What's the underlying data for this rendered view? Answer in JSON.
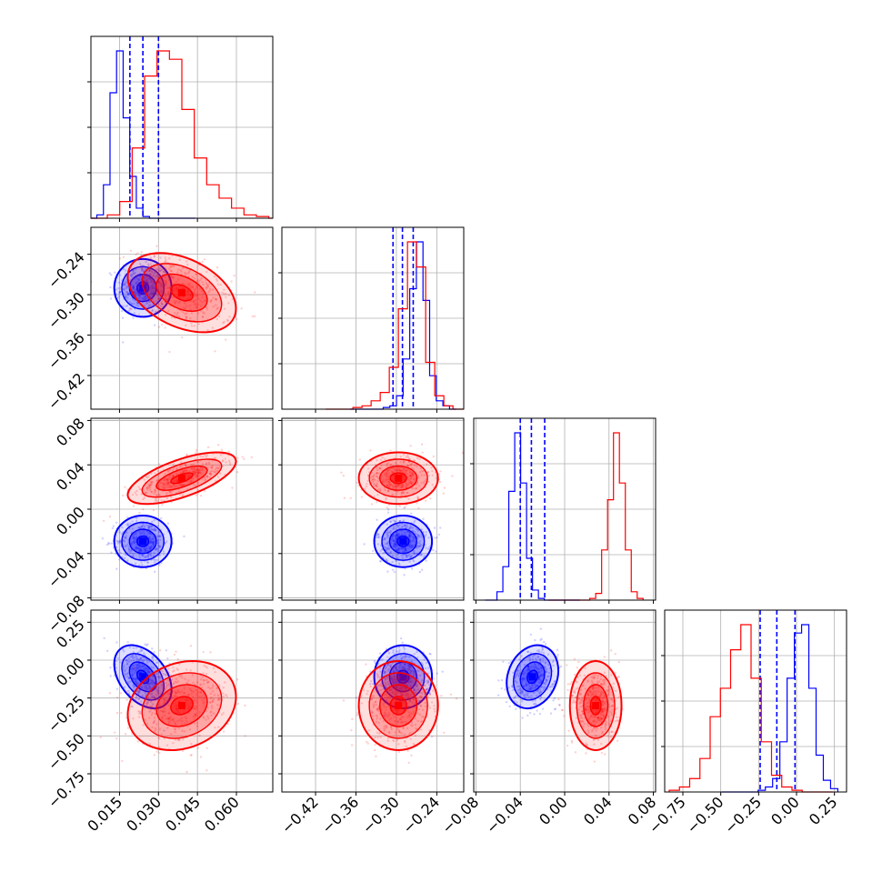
{
  "chart_data": {
    "type": "corner",
    "grid": true,
    "colors": {
      "blue": "#0000ff",
      "red": "#ff0000"
    },
    "params": [
      {
        "range": [
          0.004,
          0.074
        ],
        "ticks": [
          "0.015",
          "0.030",
          "0.045",
          "0.060"
        ],
        "tick_values": [
          0.015,
          0.03,
          0.045,
          0.06
        ]
      },
      {
        "range": [
          -0.47,
          -0.2
        ],
        "ticks": [
          "−0.42",
          "−0.36",
          "−0.30",
          "−0.24"
        ],
        "tick_values": [
          -0.42,
          -0.36,
          -0.3,
          -0.24
        ]
      },
      {
        "range": [
          -0.082,
          0.082
        ],
        "ticks": [
          "−0.08",
          "−0.04",
          "0.00",
          "0.04",
          "0.08"
        ],
        "tick_values": [
          -0.08,
          -0.04,
          0.0,
          0.04,
          0.08
        ]
      },
      {
        "range": [
          -0.87,
          0.33
        ],
        "ticks": [
          "−0.75",
          "−0.50",
          "−0.25",
          "0.00",
          "0.25"
        ],
        "tick_values": [
          -0.75,
          -0.5,
          -0.25,
          0.0,
          0.25
        ]
      }
    ],
    "series": [
      {
        "color": "blue",
        "means": [
          0.024,
          -0.29,
          -0.029,
          -0.11
        ],
        "sds": [
          0.0045,
          0.0175,
          0.0095,
          0.085
        ],
        "quantiles": [
          [
            0.019,
            0.024,
            0.03
          ],
          [
            -0.305,
            -0.291,
            -0.275
          ],
          [
            -0.04,
            -0.03,
            -0.018
          ],
          [
            -0.24,
            -0.13,
            -0.01
          ]
        ],
        "hist": [
          [
            0,
            0.02,
            0.2,
            0.75,
            1.0,
            0.6,
            0.25,
            0.06,
            0.01,
            0,
            0,
            0,
            0,
            0,
            0,
            0
          ],
          [
            0,
            0,
            0,
            0,
            0,
            0.01,
            0.02,
            0.08,
            0.3,
            0.72,
            1.0,
            0.65,
            0.2,
            0.05,
            0.02,
            0
          ],
          [
            0,
            0,
            0.05,
            0.2,
            0.65,
            1.0,
            0.7,
            0.25,
            0.06,
            0.01,
            0,
            0,
            0,
            0,
            0,
            0
          ],
          [
            0,
            0,
            0,
            0,
            0,
            0.01,
            0.03,
            0.08,
            0.3,
            0.68,
            0.95,
            1.0,
            0.62,
            0.22,
            0.07,
            0.02
          ]
        ],
        "corr": {
          "0-1": 0.0,
          "0-2": 0.0,
          "0-3": -0.4,
          "1-2": 0.0,
          "1-3": 0.0,
          "2-3": 0.2
        }
      },
      {
        "color": "red",
        "means": [
          0.039,
          -0.297,
          0.028,
          -0.3
        ],
        "sds": [
          0.0085,
          0.024,
          0.0095,
          0.12
        ],
        "quantiles": [
          [
            0.031,
            0.039,
            0.048
          ],
          [
            -0.315,
            -0.297,
            -0.279
          ],
          [
            0.018,
            0.028,
            0.038
          ],
          [
            -0.42,
            -0.3,
            -0.18
          ]
        ],
        "hist": [
          [
            0,
            0,
            0.02,
            0.1,
            0.42,
            0.85,
            1.0,
            0.95,
            0.65,
            0.36,
            0.2,
            0.12,
            0.06,
            0.02,
            0.01,
            0
          ],
          [
            0,
            0,
            0,
            0.01,
            0.02,
            0.05,
            0.1,
            0.25,
            0.6,
            1.0,
            0.85,
            0.28,
            0.08,
            0.02,
            0,
            0
          ],
          [
            0,
            0,
            0,
            0,
            0,
            0,
            0,
            0.01,
            0.04,
            0.3,
            0.6,
            1.0,
            0.7,
            0.3,
            0.05,
            0.01
          ],
          [
            0.01,
            0.03,
            0.08,
            0.2,
            0.45,
            0.62,
            0.85,
            1.0,
            0.68,
            0.3,
            0.1,
            0.03,
            0.01,
            0,
            0,
            0
          ]
        ],
        "corr": {
          "0-1": -0.4,
          "0-2": 0.65,
          "0-3": 0.2,
          "1-2": 0.0,
          "1-3": 0.0,
          "2-3": 0.0
        }
      }
    ]
  }
}
